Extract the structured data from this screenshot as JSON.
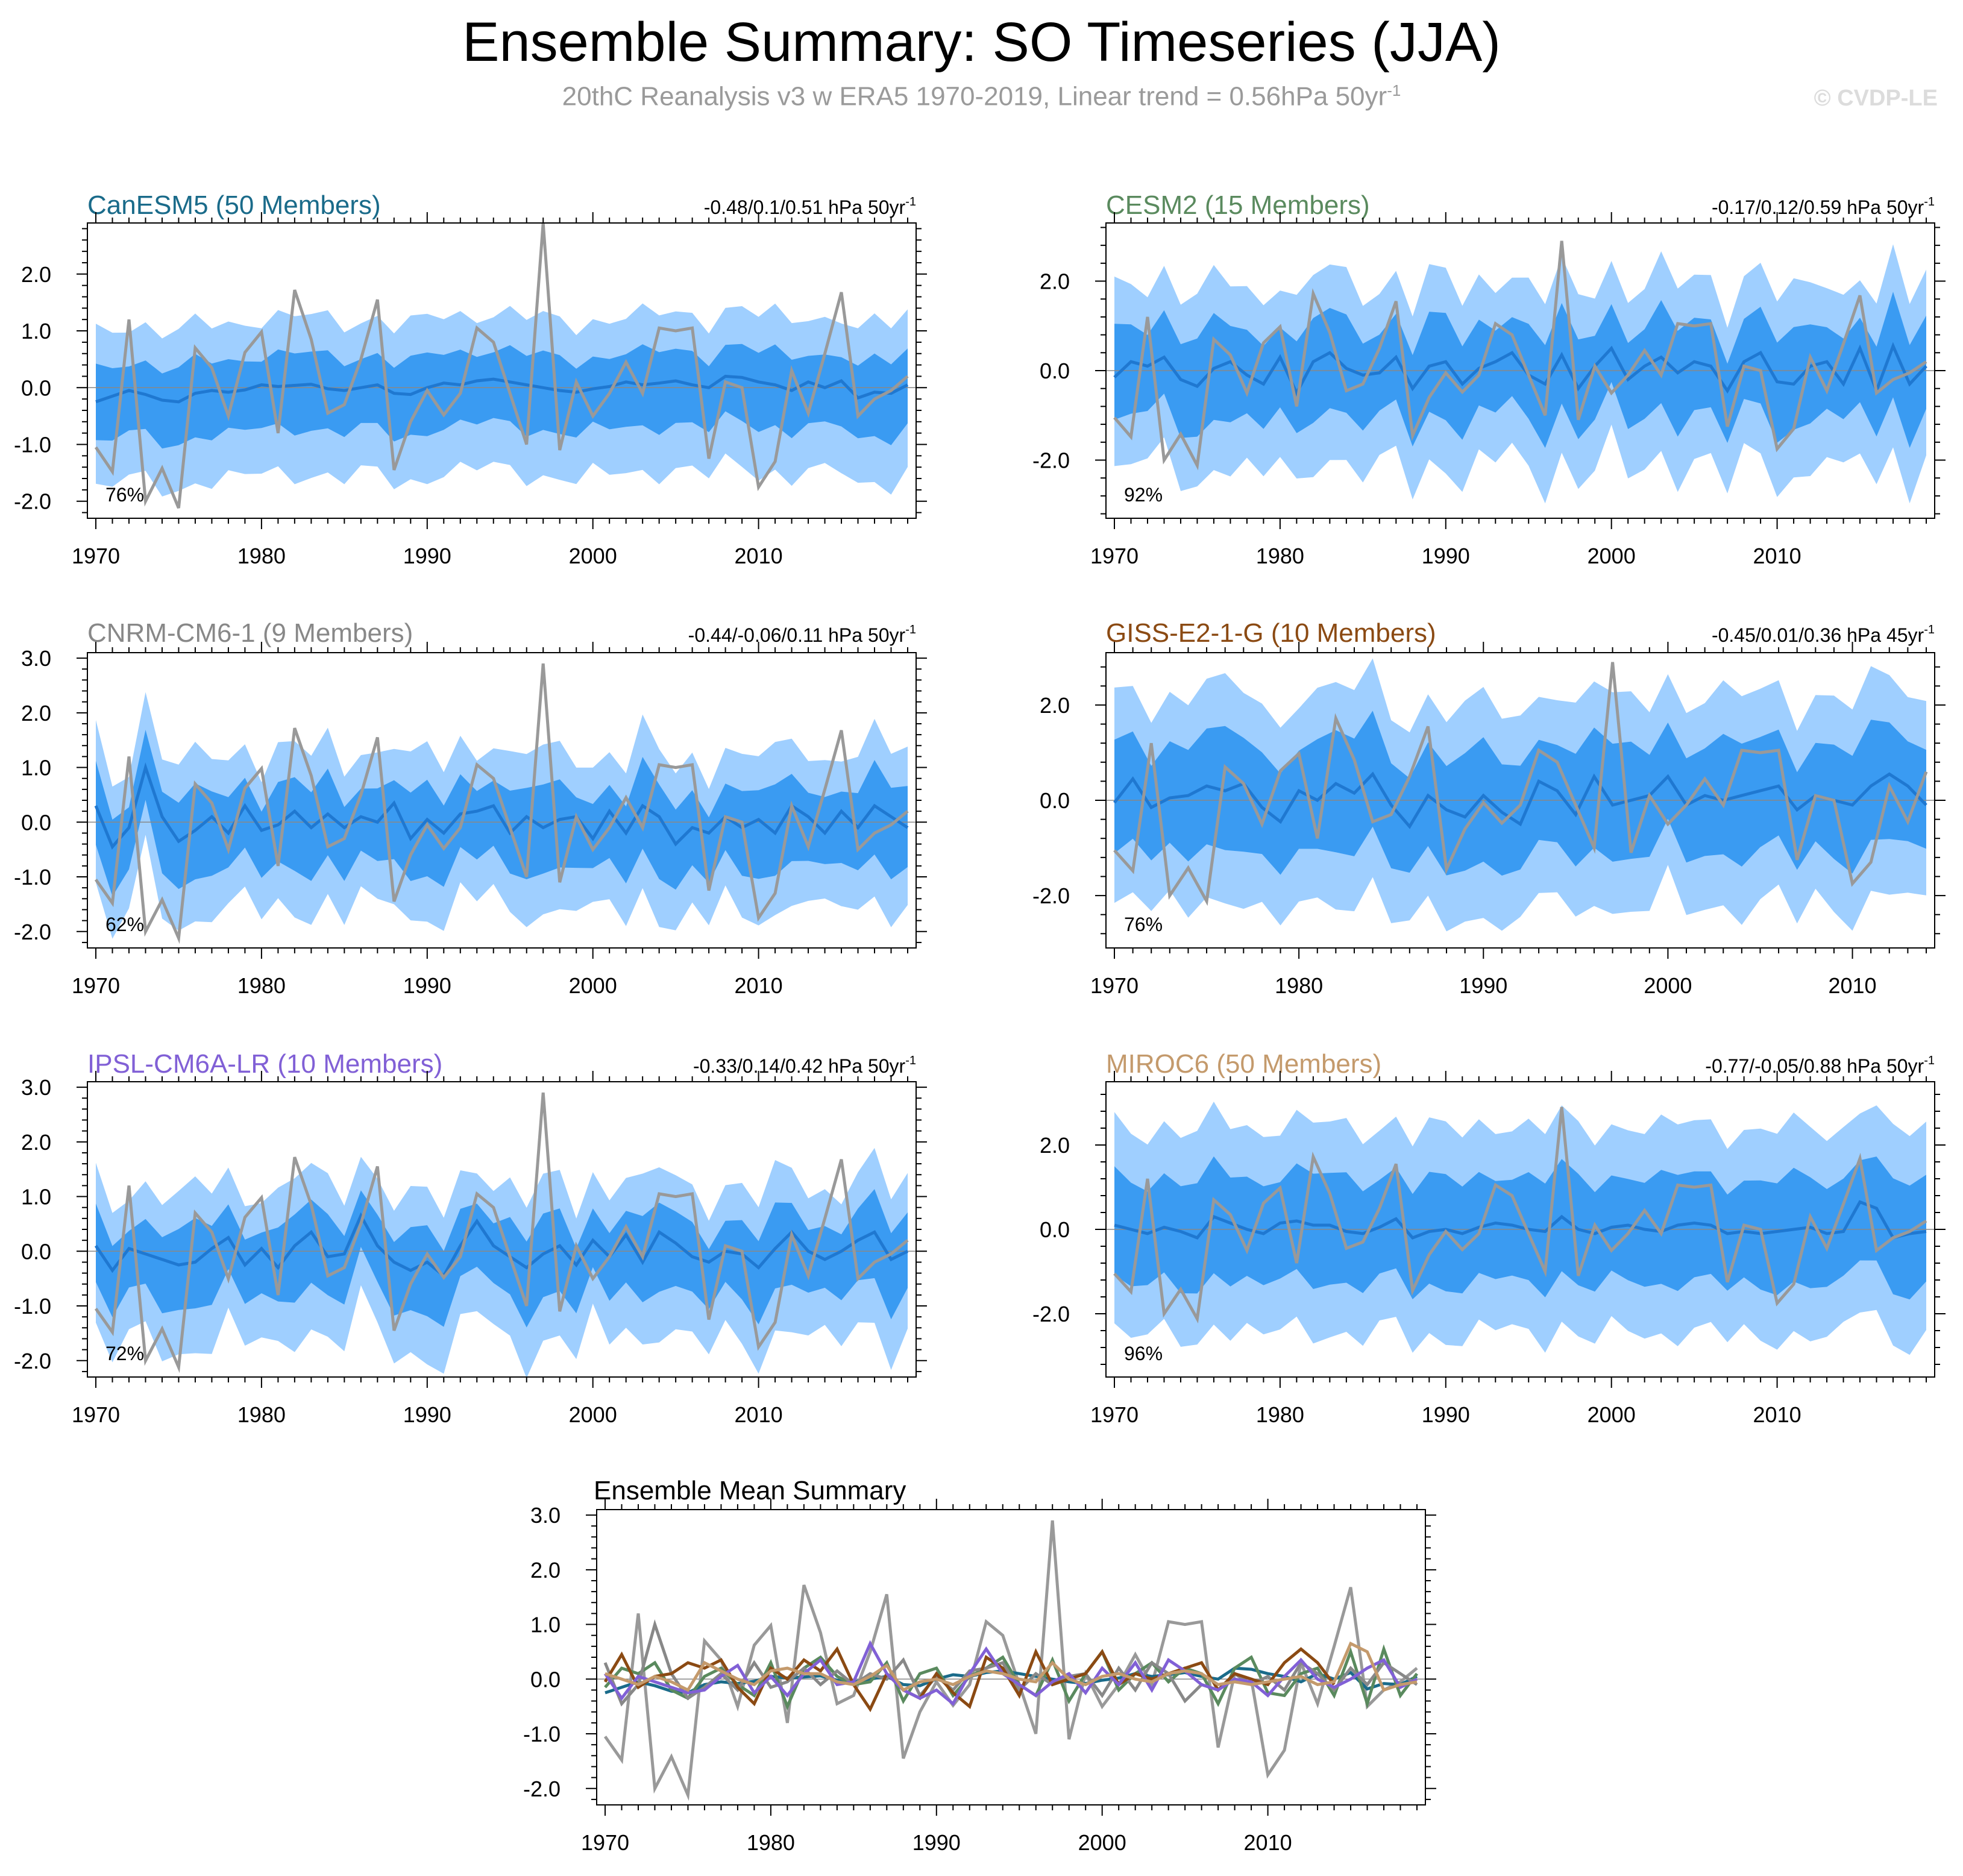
{
  "title": "Ensemble Summary: SO Timeseries (JJA)",
  "subtitle": "20thC Reanalysis v3 w ERA5 1970-2019, Linear trend = 0.56hPa 50yr",
  "subtitle_sup": "-1",
  "copyright": "© CVDP-LE",
  "colors": {
    "outer_band": "#9fcfff",
    "inner_band": "#3a9bf2",
    "ensemble_mean": "#1f78d1",
    "observed": "#999999",
    "axis": "#000000"
  },
  "observed": {
    "name": "20thC Reanalysis v3 w ERA5",
    "years": [
      1970,
      2019
    ],
    "values": [
      -1.05,
      -1.48,
      1.2,
      -2.0,
      -1.42,
      -2.12,
      0.7,
      0.35,
      -0.5,
      0.62,
      0.98,
      -0.8,
      1.72,
      0.85,
      -0.45,
      -0.3,
      0.5,
      1.55,
      -1.45,
      -0.6,
      -0.05,
      -0.48,
      -0.1,
      1.05,
      0.8,
      -0.1,
      -1.0,
      2.9,
      -1.1,
      0.1,
      -0.5,
      -0.1,
      0.45,
      -0.1,
      1.05,
      1.0,
      1.05,
      -1.25,
      0.1,
      0.0,
      -1.75,
      -1.3,
      0.3,
      -0.45,
      0.6,
      1.68,
      -0.5,
      -0.2,
      -0.05,
      0.2
    ]
  },
  "chart_data": [
    {
      "type": "area",
      "title": "CanESM5 (50 Members)",
      "title_color": "#1a6b8a",
      "stat": "-0.48/0.1/0.51 hPa 50yr",
      "stat_sup": "-1",
      "percent": "76%",
      "x_range": [
        1970,
        2019
      ],
      "xticks": [
        "1970",
        "1980",
        "1990",
        "2000",
        "2010"
      ],
      "ylim": [
        -2.3,
        2.9
      ],
      "yticks": [
        "-2.0",
        "-1.0",
        "0.0",
        "1.0",
        "2.0"
      ],
      "ensemble_mean": [
        -0.25,
        -0.15,
        -0.05,
        -0.12,
        -0.22,
        -0.25,
        -0.1,
        -0.05,
        -0.08,
        -0.04,
        0.05,
        0.02,
        0.04,
        0.06,
        -0.02,
        -0.05,
        0.0,
        0.05,
        -0.1,
        -0.12,
        0.0,
        0.08,
        0.05,
        0.12,
        0.15,
        0.1,
        0.05,
        0.0,
        -0.05,
        -0.08,
        -0.02,
        0.02,
        0.1,
        0.05,
        0.08,
        0.12,
        0.05,
        0.0,
        0.2,
        0.18,
        0.1,
        0.05,
        -0.05,
        0.1,
        0.0,
        0.12,
        -0.18,
        -0.08,
        -0.1,
        0.05
      ],
      "inner_hi": 0.55,
      "inner_lo": -0.75,
      "outer_hi": 1.2,
      "outer_lo": -1.55,
      "band_var": 0.25
    },
    {
      "type": "area",
      "title": "CESM2 (15 Members)",
      "title_color": "#5a8a5e",
      "stat": "-0.17/0.12/0.59 hPa 50yr",
      "stat_sup": "-1",
      "percent": "92%",
      "x_range": [
        1970,
        2019
      ],
      "xticks": [
        "1970",
        "1980",
        "1990",
        "2000",
        "2010"
      ],
      "ylim": [
        -3.3,
        3.3
      ],
      "yticks": [
        "-2.0",
        "0.0",
        "2.0"
      ],
      "ensemble_mean": [
        -0.15,
        0.2,
        0.1,
        0.3,
        -0.2,
        -0.35,
        0.05,
        0.2,
        -0.1,
        -0.3,
        0.3,
        -0.5,
        0.2,
        0.4,
        0.05,
        -0.1,
        -0.05,
        0.3,
        -0.4,
        0.1,
        0.2,
        -0.3,
        0.05,
        0.2,
        0.4,
        -0.1,
        -0.3,
        0.35,
        -0.4,
        0.1,
        0.5,
        -0.2,
        0.1,
        0.3,
        -0.05,
        0.2,
        0.1,
        -0.45,
        0.2,
        0.4,
        -0.25,
        -0.3,
        0.1,
        0.2,
        -0.3,
        0.5,
        -0.45,
        0.55,
        -0.3,
        0.1
      ],
      "inner_hi": 0.95,
      "inner_lo": -1.1,
      "outer_hi": 1.9,
      "outer_lo": -2.2,
      "band_var": 0.5
    },
    {
      "type": "area",
      "title": "CNRM-CM6-1 (9 Members)",
      "title_color": "#888888",
      "stat": "-0.44/-0.06/0.11 hPa 50yr",
      "stat_sup": "-1",
      "percent": "62%",
      "x_range": [
        1970,
        2019
      ],
      "xticks": [
        "1970",
        "1980",
        "1990",
        "2000",
        "2010"
      ],
      "ylim": [
        -2.3,
        3.1
      ],
      "yticks": [
        "-2.0",
        "-1.0",
        "0.0",
        "1.0",
        "2.0",
        "3.0"
      ],
      "ensemble_mean": [
        0.3,
        -0.45,
        -0.1,
        1.0,
        0.1,
        -0.35,
        -0.15,
        0.1,
        -0.2,
        0.3,
        -0.15,
        -0.05,
        0.2,
        -0.1,
        0.15,
        -0.1,
        0.1,
        0.0,
        0.35,
        -0.3,
        0.05,
        -0.2,
        0.15,
        0.2,
        0.3,
        -0.2,
        0.1,
        -0.1,
        0.05,
        0.1,
        -0.3,
        0.2,
        -0.2,
        0.3,
        0.1,
        -0.4,
        -0.1,
        -0.2,
        0.1,
        -0.1,
        0.05,
        -0.2,
        0.3,
        0.1,
        -0.2,
        0.2,
        -0.1,
        0.3,
        0.1,
        -0.1
      ],
      "inner_hi": 0.6,
      "inner_lo": -0.85,
      "outer_hi": 1.25,
      "outer_lo": -1.6,
      "band_var": 0.45
    },
    {
      "type": "area",
      "title": "GISS-E2-1-G (10 Members)",
      "title_color": "#8b4a13",
      "stat": "-0.45/0.01/0.36 hPa 45yr",
      "stat_sup": "-1",
      "percent": "76%",
      "x_range": [
        1970,
        2014
      ],
      "xticks": [
        "1970",
        "1980",
        "1990",
        "2000",
        "2010"
      ],
      "ylim": [
        -3.1,
        3.1
      ],
      "yticks": [
        "-2.0",
        "0.0",
        "2.0"
      ],
      "ensemble_mean": [
        -0.05,
        0.45,
        -0.15,
        0.05,
        0.1,
        0.3,
        0.2,
        0.35,
        -0.15,
        -0.45,
        0.2,
        0.0,
        0.35,
        0.15,
        0.55,
        -0.1,
        -0.55,
        0.1,
        -0.2,
        -0.35,
        0.1,
        -0.25,
        -0.5,
        0.4,
        0.2,
        -0.3,
        0.5,
        -0.1,
        0.0,
        0.1,
        0.5,
        -0.1,
        0.1,
        0.0,
        0.1,
        0.2,
        0.3,
        -0.2,
        0.1,
        0.0,
        -0.1,
        0.3,
        0.55,
        0.3,
        -0.1
      ],
      "inner_hi": 1.1,
      "inner_lo": -1.2,
      "outer_hi": 2.1,
      "outer_lo": -2.3,
      "band_var": 0.45
    },
    {
      "type": "area",
      "title": "IPSL-CM6A-LR (10 Members)",
      "title_color": "#8160d6",
      "stat": "-0.33/0.14/0.42 hPa 50yr",
      "stat_sup": "-1",
      "percent": "72%",
      "x_range": [
        1970,
        2019
      ],
      "xticks": [
        "1970",
        "1980",
        "1990",
        "2000",
        "2010"
      ],
      "ylim": [
        -2.3,
        3.1
      ],
      "yticks": [
        "-2.0",
        "-1.0",
        "0.0",
        "1.0",
        "2.0",
        "3.0"
      ],
      "ensemble_mean": [
        0.1,
        -0.35,
        0.05,
        -0.05,
        -0.15,
        -0.25,
        -0.2,
        0.05,
        0.25,
        -0.25,
        0.05,
        -0.3,
        0.1,
        0.35,
        -0.1,
        -0.05,
        0.65,
        0.1,
        -0.2,
        -0.35,
        -0.2,
        -0.45,
        0.1,
        0.55,
        0.1,
        -0.1,
        -0.3,
        -0.05,
        0.1,
        -0.25,
        0.2,
        -0.1,
        0.3,
        -0.2,
        0.35,
        0.15,
        -0.1,
        -0.2,
        0.0,
        -0.05,
        -0.3,
        0.05,
        0.35,
        0.0,
        -0.15,
        0.0,
        0.2,
        0.35,
        -0.15,
        0.0
      ],
      "inner_hi": 0.55,
      "inner_lo": -0.8,
      "outer_hi": 1.2,
      "outer_lo": -1.6,
      "band_var": 0.45
    },
    {
      "type": "area",
      "title": "MIROC6 (50 Members)",
      "title_color": "#c49a6c",
      "stat": "-0.77/-0.05/0.88 hPa 50yr",
      "stat_sup": "-1",
      "percent": "96%",
      "x_range": [
        1970,
        2019
      ],
      "xticks": [
        "1970",
        "1980",
        "1990",
        "2000",
        "2010"
      ],
      "ylim": [
        -3.5,
        3.5
      ],
      "yticks": [
        "-2.0",
        "0.0",
        "2.0"
      ],
      "ensemble_mean": [
        0.1,
        0.0,
        -0.1,
        0.05,
        -0.05,
        -0.2,
        0.3,
        0.15,
        0.0,
        -0.1,
        0.15,
        0.2,
        0.1,
        0.1,
        -0.05,
        -0.1,
        0.05,
        0.25,
        -0.2,
        -0.05,
        0.0,
        -0.1,
        0.05,
        0.15,
        0.1,
        0.0,
        -0.05,
        0.3,
        0.0,
        -0.1,
        0.05,
        0.1,
        0.0,
        -0.05,
        0.1,
        0.15,
        0.1,
        -0.1,
        -0.05,
        -0.1,
        -0.05,
        0.0,
        0.05,
        -0.1,
        -0.05,
        0.65,
        0.5,
        -0.2,
        -0.1,
        -0.05
      ],
      "inner_hi": 1.2,
      "inner_lo": -1.3,
      "outer_hi": 2.4,
      "outer_lo": -2.5,
      "band_var": 0.4
    },
    {
      "type": "line",
      "title": "Ensemble Mean Summary",
      "title_color": "#000000",
      "x_range": [
        1970,
        2019
      ],
      "xticks": [
        "1970",
        "1980",
        "1990",
        "2000",
        "2010"
      ],
      "ylim": [
        -2.3,
        3.1
      ],
      "yticks": [
        "-2.0",
        "-1.0",
        "0.0",
        "1.0",
        "2.0",
        "3.0"
      ],
      "series_refs": [
        "CanESM5 (50 Members)",
        "CESM2 (15 Members)",
        "CNRM-CM6-1 (9 Members)",
        "GISS-E2-1-G (10 Members)",
        "IPSL-CM6A-LR (10 Members)",
        "MIROC6 (50 Members)"
      ]
    }
  ]
}
